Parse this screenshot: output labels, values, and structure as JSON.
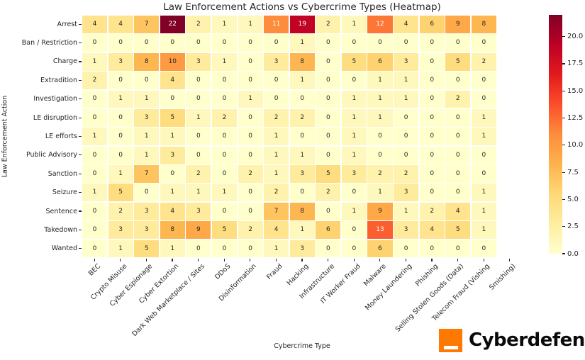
{
  "chart_data": {
    "type": "heatmap",
    "title": "Law Enforcement Actions vs Cybercrime Types (Heatmap)",
    "xlabel": "Cybercrime Type",
    "ylabel": "Law Enforcement Action",
    "x_categories": [
      "BEC",
      "Crypto Misuse",
      "Cyber Espionage",
      "Cyber Extortion",
      "Dark Web Marketplace / Sites",
      "DDoS",
      "Disinformation",
      "Fraud",
      "Hacking",
      "Infrastructure",
      "IT Worker Fraud",
      "Malware",
      "Money Laundering",
      "Phishing",
      "Selling Stolen Goods (Data)",
      "Telecom Fraud (Vishing",
      "Smishing)"
    ],
    "y_categories": [
      "Arrest",
      "Ban / Restriction",
      "Charge",
      "Extradition",
      "Investigation",
      "LE disruption",
      "LE efforts",
      "Public Advisory",
      "Sanction",
      "Seizure",
      "Sentence",
      "Takedown",
      "Wanted"
    ],
    "values": [
      [
        4,
        4,
        7,
        22,
        2,
        1,
        1,
        11,
        19,
        2,
        1,
        12,
        4,
        6,
        9,
        8,
        null
      ],
      [
        0,
        0,
        0,
        0,
        0,
        0,
        0,
        0,
        1,
        0,
        0,
        0,
        0,
        0,
        0,
        0,
        null
      ],
      [
        1,
        3,
        8,
        10,
        3,
        1,
        0,
        3,
        8,
        0,
        5,
        6,
        3,
        0,
        5,
        2,
        null
      ],
      [
        2,
        0,
        0,
        4,
        0,
        0,
        0,
        0,
        1,
        0,
        0,
        1,
        1,
        0,
        0,
        0,
        null
      ],
      [
        0,
        1,
        1,
        0,
        0,
        0,
        1,
        0,
        0,
        0,
        1,
        1,
        1,
        0,
        2,
        0,
        null
      ],
      [
        0,
        0,
        3,
        5,
        1,
        2,
        0,
        2,
        2,
        0,
        1,
        1,
        0,
        0,
        0,
        1,
        null
      ],
      [
        1,
        0,
        1,
        1,
        0,
        0,
        0,
        1,
        0,
        0,
        1,
        0,
        0,
        0,
        0,
        1,
        null
      ],
      [
        0,
        0,
        1,
        3,
        0,
        0,
        0,
        1,
        1,
        0,
        1,
        0,
        0,
        0,
        0,
        0,
        null
      ],
      [
        0,
        1,
        7,
        0,
        2,
        0,
        2,
        1,
        3,
        5,
        3,
        2,
        2,
        0,
        0,
        0,
        null
      ],
      [
        1,
        5,
        0,
        1,
        1,
        1,
        0,
        2,
        0,
        2,
        0,
        1,
        3,
        0,
        0,
        1,
        null
      ],
      [
        0,
        2,
        3,
        4,
        3,
        0,
        0,
        7,
        8,
        0,
        1,
        9,
        1,
        2,
        4,
        1,
        null
      ],
      [
        0,
        3,
        3,
        8,
        9,
        5,
        2,
        4,
        1,
        6,
        0,
        13,
        3,
        4,
        5,
        1,
        null
      ],
      [
        0,
        1,
        5,
        1,
        0,
        0,
        0,
        1,
        3,
        0,
        0,
        6,
        0,
        0,
        0,
        0,
        null
      ]
    ],
    "vmin": 0,
    "vmax": 22,
    "colormap": "YlOrRd",
    "colormap_stops": [
      "#ffffcc",
      "#ffeda0",
      "#fed976",
      "#feb24c",
      "#fd8d3c",
      "#fc4e2a",
      "#e31a1c",
      "#bd0026",
      "#800026"
    ],
    "grid_line_color": "#ffffff",
    "annotation_dark_color": "#262626",
    "annotation_light_color": "#ffffff",
    "colorbar_ticks": [
      0.0,
      2.5,
      5.0,
      7.5,
      10.0,
      12.5,
      15.0,
      17.5,
      20.0
    ],
    "colorbar_tick_labels": [
      "0.0",
      "2.5",
      "5.0",
      "7.5",
      "10.0",
      "12.5",
      "15.0",
      "17.5",
      "20.0"
    ],
    "legend_position": "right-colorbar",
    "grid": false
  },
  "branding": {
    "logo_text": "Cyberdefense",
    "logo_color": "#ff7900"
  }
}
